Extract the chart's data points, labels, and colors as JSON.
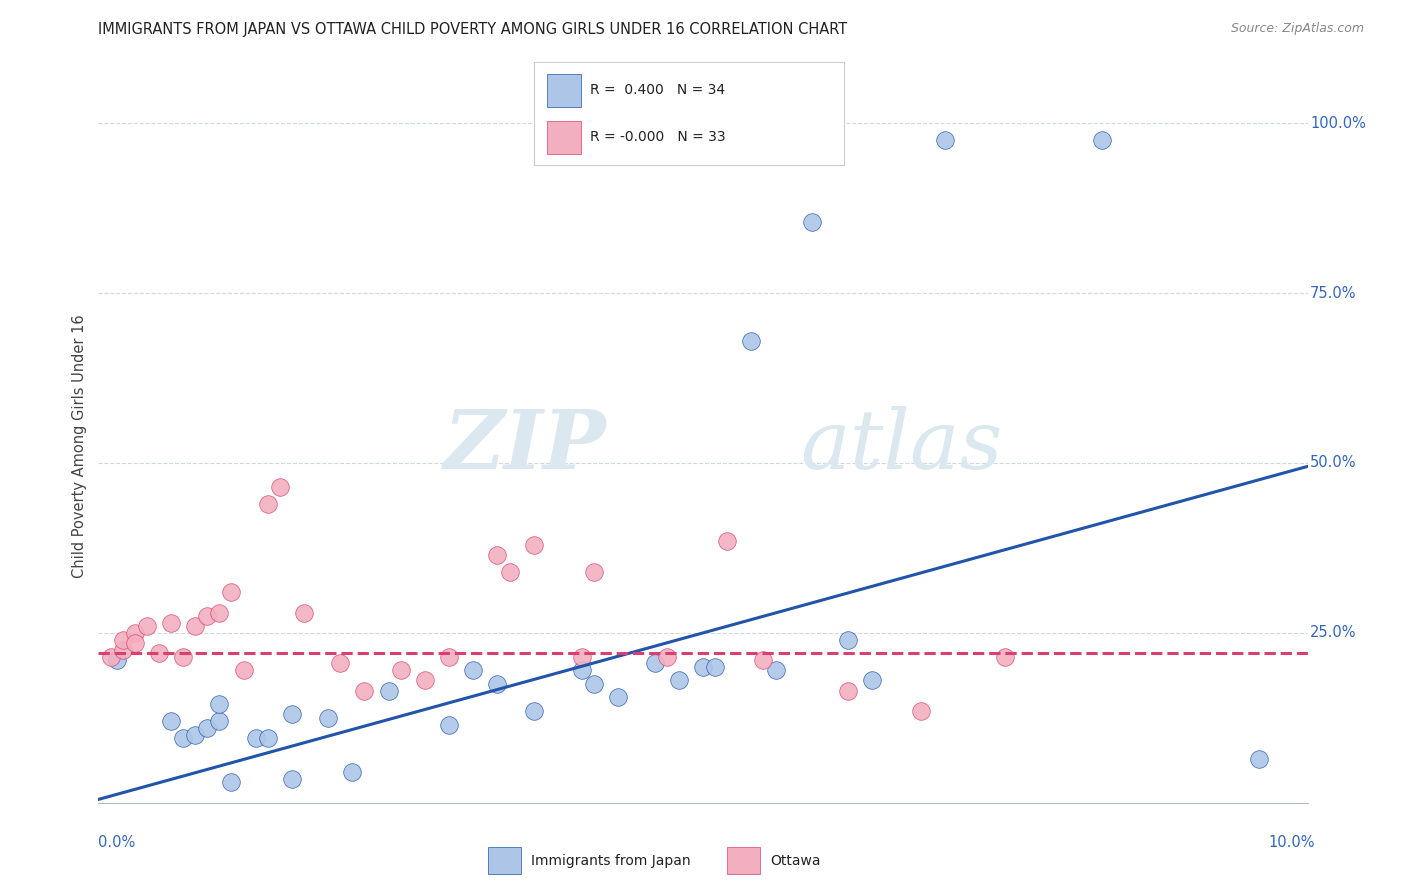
{
  "title": "IMMIGRANTS FROM JAPAN VS OTTAWA CHILD POVERTY AMONG GIRLS UNDER 16 CORRELATION CHART",
  "source": "Source: ZipAtlas.com",
  "ylabel": "Child Poverty Among Girls Under 16",
  "legend_label1": "Immigrants from Japan",
  "legend_label2": "Ottawa",
  "legend_r1": "R =  0.400",
  "legend_n1": "N = 34",
  "legend_r2": "R = -0.000",
  "legend_n2": "N = 33",
  "color_blue": "#adc6e8",
  "color_pink": "#f2afc0",
  "color_blue_dark": "#2255aa",
  "color_pink_dark": "#d94070",
  "color_text_blue": "#3366bb",
  "background": "#ffffff",
  "watermark_zip": "ZIP",
  "watermark_atlas": "atlas",
  "blue_scatter_x": [
    0.0015,
    0.006,
    0.007,
    0.008,
    0.009,
    0.01,
    0.01,
    0.011,
    0.013,
    0.014,
    0.016,
    0.016,
    0.019,
    0.021,
    0.024,
    0.029,
    0.031,
    0.033,
    0.036,
    0.04,
    0.041,
    0.043,
    0.046,
    0.048,
    0.05,
    0.051,
    0.054,
    0.056,
    0.059,
    0.062,
    0.064,
    0.07,
    0.083,
    0.096
  ],
  "blue_scatter_y": [
    0.21,
    0.12,
    0.095,
    0.1,
    0.11,
    0.12,
    0.145,
    0.03,
    0.095,
    0.095,
    0.13,
    0.035,
    0.125,
    0.045,
    0.165,
    0.115,
    0.195,
    0.175,
    0.135,
    0.195,
    0.175,
    0.155,
    0.205,
    0.18,
    0.2,
    0.2,
    0.68,
    0.195,
    0.855,
    0.24,
    0.18,
    0.975,
    0.975,
    0.065
  ],
  "pink_scatter_x": [
    0.001,
    0.002,
    0.002,
    0.003,
    0.003,
    0.004,
    0.005,
    0.006,
    0.007,
    0.008,
    0.009,
    0.01,
    0.011,
    0.012,
    0.014,
    0.015,
    0.017,
    0.02,
    0.022,
    0.025,
    0.027,
    0.029,
    0.033,
    0.034,
    0.036,
    0.04,
    0.041,
    0.047,
    0.052,
    0.055,
    0.062,
    0.068,
    0.075
  ],
  "pink_scatter_y": [
    0.215,
    0.225,
    0.24,
    0.25,
    0.235,
    0.26,
    0.22,
    0.265,
    0.215,
    0.26,
    0.275,
    0.28,
    0.31,
    0.195,
    0.44,
    0.465,
    0.28,
    0.205,
    0.165,
    0.195,
    0.18,
    0.215,
    0.365,
    0.34,
    0.38,
    0.215,
    0.34,
    0.215,
    0.385,
    0.21,
    0.165,
    0.135,
    0.215
  ],
  "blue_line_x": [
    0.0,
    0.1
  ],
  "blue_line_y": [
    0.005,
    0.495
  ],
  "pink_line_x": [
    0.0,
    0.1
  ],
  "pink_line_y": [
    0.22,
    0.22
  ],
  "xlim": [
    0.0,
    0.1
  ],
  "ylim": [
    0.0,
    1.05
  ],
  "ytick_values": [
    0.25,
    0.5,
    0.75,
    1.0
  ],
  "ytick_labels": [
    "25.0%",
    "50.0%",
    "75.0%",
    "100.0%"
  ],
  "grid_color": "#d0d8e0",
  "scatter_size": 160
}
